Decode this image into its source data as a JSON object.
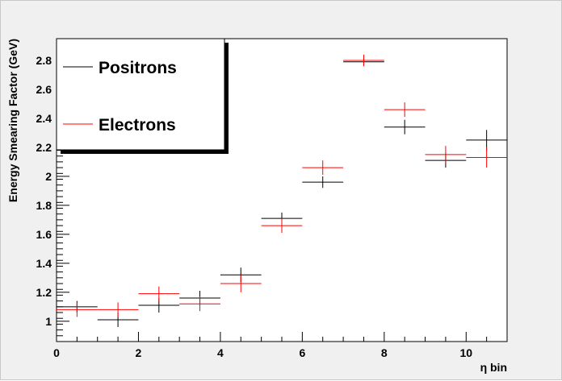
{
  "chart_data": {
    "type": "scatter",
    "xlabel": "η bin",
    "ylabel": "Energy Smearing Factor (GeV)",
    "xlim": [
      0,
      11
    ],
    "ylim": [
      0.86,
      2.95
    ],
    "xticks": [
      0,
      2,
      4,
      6,
      8,
      10
    ],
    "yticks": [
      1,
      1.2,
      1.4,
      1.6,
      1.8,
      2,
      2.2,
      2.4,
      2.6,
      2.8
    ],
    "x_error_halfwidth": 0.5,
    "legend_position": "top-left",
    "series": [
      {
        "name": "Positrons",
        "color": "#000000",
        "x": [
          0.5,
          1.5,
          2.5,
          3.5,
          4.5,
          5.5,
          6.5,
          7.5,
          8.5,
          9.5,
          10.5
        ],
        "y": [
          1.1,
          1.01,
          1.11,
          1.16,
          1.32,
          1.71,
          1.96,
          2.79,
          2.34,
          2.11,
          2.25
        ],
        "yerr": [
          0.04,
          0.05,
          0.05,
          0.05,
          0.05,
          0.04,
          0.04,
          0.03,
          0.05,
          0.05,
          0.07
        ]
      },
      {
        "name": "Electrons",
        "color": "#ff0000",
        "x": [
          0.5,
          1.5,
          2.5,
          3.5,
          4.5,
          5.5,
          6.5,
          7.5,
          8.5,
          9.5,
          10.5
        ],
        "y": [
          1.08,
          1.08,
          1.19,
          1.12,
          1.26,
          1.66,
          2.06,
          2.8,
          2.46,
          2.15,
          2.13
        ],
        "yerr": [
          0.05,
          0.05,
          0.05,
          0.05,
          0.06,
          0.05,
          0.05,
          0.04,
          0.05,
          0.06,
          0.07
        ]
      }
    ]
  }
}
